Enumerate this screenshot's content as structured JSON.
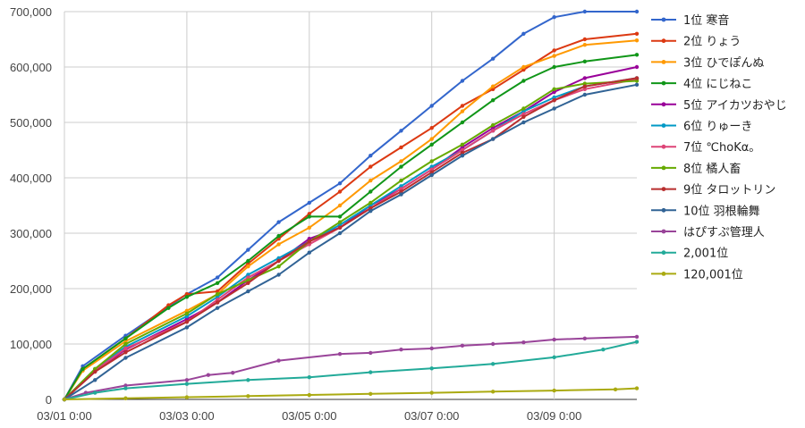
{
  "chart_data": {
    "type": "line",
    "title": "",
    "xlabel": "",
    "ylabel": "",
    "x_ticks": [
      "03/01 0:00",
      "03/03 0:00",
      "03/05 0:00",
      "03/07 0:00",
      "03/09 0:00"
    ],
    "x_unit": "days since 03/01 0:00",
    "x_range": [
      0,
      9.35
    ],
    "ylim": [
      0,
      700000
    ],
    "y_ticks": [
      0,
      100000,
      200000,
      300000,
      400000,
      500000,
      600000,
      700000
    ],
    "y_tick_labels": [
      "0",
      "100,000",
      "200,000",
      "300,000",
      "400,000",
      "500,000",
      "600,000",
      "700,000"
    ],
    "grid": true,
    "legend_position": "right",
    "series": [
      {
        "name": "1位 寒音",
        "color": "#3366cc",
        "points": [
          [
            0,
            0
          ],
          [
            0.3,
            60000
          ],
          [
            1,
            115000
          ],
          [
            2,
            190000
          ],
          [
            2.5,
            220000
          ],
          [
            3,
            270000
          ],
          [
            3.5,
            320000
          ],
          [
            4,
            355000
          ],
          [
            4.5,
            390000
          ],
          [
            5,
            440000
          ],
          [
            5.5,
            485000
          ],
          [
            6,
            530000
          ],
          [
            6.5,
            575000
          ],
          [
            7,
            615000
          ],
          [
            7.5,
            660000
          ],
          [
            8,
            690000
          ],
          [
            8.5,
            700000
          ],
          [
            9.35,
            700000
          ]
        ]
      },
      {
        "name": "2位 りょう",
        "color": "#dc3912",
        "points": [
          [
            0,
            0
          ],
          [
            0.3,
            55000
          ],
          [
            1,
            110000
          ],
          [
            1.7,
            170000
          ],
          [
            2,
            190000
          ],
          [
            2.5,
            195000
          ],
          [
            3,
            245000
          ],
          [
            3.5,
            290000
          ],
          [
            4,
            335000
          ],
          [
            4.5,
            375000
          ],
          [
            5,
            420000
          ],
          [
            5.5,
            455000
          ],
          [
            6,
            490000
          ],
          [
            6.5,
            530000
          ],
          [
            7,
            560000
          ],
          [
            7.5,
            595000
          ],
          [
            8,
            630000
          ],
          [
            8.5,
            650000
          ],
          [
            9.35,
            660000
          ]
        ]
      },
      {
        "name": "3位 ひでぽんぬ",
        "color": "#ff9900",
        "points": [
          [
            0,
            0
          ],
          [
            0.3,
            52000
          ],
          [
            1,
            105000
          ],
          [
            2,
            160000
          ],
          [
            2.5,
            190000
          ],
          [
            3,
            240000
          ],
          [
            3.5,
            280000
          ],
          [
            4,
            310000
          ],
          [
            4.5,
            350000
          ],
          [
            5,
            395000
          ],
          [
            5.5,
            430000
          ],
          [
            6,
            470000
          ],
          [
            6.5,
            520000
          ],
          [
            7,
            565000
          ],
          [
            7.5,
            600000
          ],
          [
            8,
            620000
          ],
          [
            8.5,
            640000
          ],
          [
            9.35,
            648000
          ]
        ]
      },
      {
        "name": "4位 にじねこ",
        "color": "#109618",
        "points": [
          [
            0,
            0
          ],
          [
            0.3,
            55000
          ],
          [
            1,
            110000
          ],
          [
            1.7,
            165000
          ],
          [
            2,
            185000
          ],
          [
            2.5,
            210000
          ],
          [
            3,
            250000
          ],
          [
            3.5,
            295000
          ],
          [
            4,
            330000
          ],
          [
            4.5,
            330000
          ],
          [
            5,
            375000
          ],
          [
            5.5,
            420000
          ],
          [
            6,
            460000
          ],
          [
            6.5,
            500000
          ],
          [
            7,
            540000
          ],
          [
            7.5,
            575000
          ],
          [
            8,
            600000
          ],
          [
            8.5,
            610000
          ],
          [
            9.35,
            622000
          ]
        ]
      },
      {
        "name": "5位 アイカツおやじ",
        "color": "#990099",
        "points": [
          [
            0,
            0
          ],
          [
            0.5,
            50000
          ],
          [
            1,
            90000
          ],
          [
            2,
            145000
          ],
          [
            2.5,
            175000
          ],
          [
            3,
            215000
          ],
          [
            3.5,
            250000
          ],
          [
            4,
            290000
          ],
          [
            4.5,
            310000
          ],
          [
            5,
            350000
          ],
          [
            5.5,
            380000
          ],
          [
            6,
            415000
          ],
          [
            6.5,
            455000
          ],
          [
            7,
            490000
          ],
          [
            7.5,
            520000
          ],
          [
            8,
            555000
          ],
          [
            8.5,
            580000
          ],
          [
            9.35,
            600000
          ]
        ]
      },
      {
        "name": "6位 りゅーき",
        "color": "#0099c6",
        "points": [
          [
            0,
            0
          ],
          [
            0.5,
            55000
          ],
          [
            1,
            95000
          ],
          [
            2,
            150000
          ],
          [
            2.5,
            185000
          ],
          [
            3,
            225000
          ],
          [
            3.5,
            255000
          ],
          [
            4,
            285000
          ],
          [
            4.5,
            315000
          ],
          [
            5,
            350000
          ],
          [
            5.5,
            385000
          ],
          [
            6,
            420000
          ],
          [
            6.5,
            450000
          ],
          [
            7,
            485000
          ],
          [
            7.5,
            520000
          ],
          [
            8,
            545000
          ],
          [
            8.5,
            565000
          ],
          [
            9.35,
            580000
          ]
        ]
      },
      {
        "name": "7位 ℃hoKα。",
        "color": "#dd4477",
        "points": [
          [
            0,
            0
          ],
          [
            0.5,
            52000
          ],
          [
            1,
            92000
          ],
          [
            2,
            140000
          ],
          [
            2.5,
            180000
          ],
          [
            3,
            220000
          ],
          [
            3.5,
            250000
          ],
          [
            4,
            280000
          ],
          [
            4.5,
            310000
          ],
          [
            5,
            345000
          ],
          [
            5.5,
            380000
          ],
          [
            6,
            415000
          ],
          [
            6.5,
            450000
          ],
          [
            7,
            485000
          ],
          [
            7.5,
            515000
          ],
          [
            8,
            540000
          ],
          [
            8.5,
            560000
          ],
          [
            9.35,
            578000
          ]
        ]
      },
      {
        "name": "8位 橘人畜",
        "color": "#66aa00",
        "points": [
          [
            0,
            0
          ],
          [
            0.5,
            55000
          ],
          [
            1,
            100000
          ],
          [
            2,
            155000
          ],
          [
            2.5,
            190000
          ],
          [
            3,
            215000
          ],
          [
            3.5,
            240000
          ],
          [
            4,
            285000
          ],
          [
            4.5,
            320000
          ],
          [
            5,
            355000
          ],
          [
            5.5,
            395000
          ],
          [
            6,
            430000
          ],
          [
            6.5,
            460000
          ],
          [
            7,
            495000
          ],
          [
            7.5,
            525000
          ],
          [
            8,
            560000
          ],
          [
            8.5,
            570000
          ],
          [
            9.35,
            575000
          ]
        ]
      },
      {
        "name": "9位 タロットリン",
        "color": "#b82e2e",
        "points": [
          [
            0,
            0
          ],
          [
            0.5,
            50000
          ],
          [
            1,
            85000
          ],
          [
            2,
            140000
          ],
          [
            2.5,
            175000
          ],
          [
            3,
            210000
          ],
          [
            3.5,
            250000
          ],
          [
            4,
            285000
          ],
          [
            4.5,
            310000
          ],
          [
            5,
            345000
          ],
          [
            5.5,
            375000
          ],
          [
            6,
            410000
          ],
          [
            6.5,
            445000
          ],
          [
            7,
            470000
          ],
          [
            7.5,
            510000
          ],
          [
            8,
            540000
          ],
          [
            8.5,
            565000
          ],
          [
            9.35,
            580000
          ]
        ]
      },
      {
        "name": "10位 羽根輪舞",
        "color": "#316395",
        "points": [
          [
            0,
            0
          ],
          [
            0.5,
            35000
          ],
          [
            1,
            75000
          ],
          [
            2,
            130000
          ],
          [
            2.5,
            165000
          ],
          [
            3,
            195000
          ],
          [
            3.5,
            225000
          ],
          [
            4,
            265000
          ],
          [
            4.5,
            300000
          ],
          [
            5,
            340000
          ],
          [
            5.5,
            370000
          ],
          [
            6,
            405000
          ],
          [
            6.5,
            440000
          ],
          [
            7,
            470000
          ],
          [
            7.5,
            500000
          ],
          [
            8,
            525000
          ],
          [
            8.5,
            550000
          ],
          [
            9.35,
            568000
          ]
        ]
      },
      {
        "name": "はぴすぷ管理人",
        "color": "#994499",
        "points": [
          [
            0,
            0
          ],
          [
            0.35,
            12000
          ],
          [
            1,
            25000
          ],
          [
            2,
            35000
          ],
          [
            2.35,
            44000
          ],
          [
            2.75,
            48000
          ],
          [
            3.5,
            70000
          ],
          [
            4.5,
            82000
          ],
          [
            5,
            84000
          ],
          [
            5.5,
            90000
          ],
          [
            6,
            92000
          ],
          [
            6.5,
            97000
          ],
          [
            7,
            100000
          ],
          [
            7.5,
            103000
          ],
          [
            8,
            108000
          ],
          [
            8.5,
            110000
          ],
          [
            9.35,
            113000
          ]
        ]
      },
      {
        "name": "2,001位",
        "color": "#22aa99",
        "points": [
          [
            0,
            0
          ],
          [
            0.5,
            12000
          ],
          [
            1,
            20000
          ],
          [
            2,
            28000
          ],
          [
            3,
            35000
          ],
          [
            4,
            40000
          ],
          [
            5,
            49000
          ],
          [
            6,
            56000
          ],
          [
            7,
            64000
          ],
          [
            8,
            76000
          ],
          [
            8.8,
            90000
          ],
          [
            9.35,
            104000
          ]
        ]
      },
      {
        "name": "120,001位",
        "color": "#aaaa11",
        "points": [
          [
            0,
            0
          ],
          [
            1,
            2000
          ],
          [
            2,
            4000
          ],
          [
            3,
            6000
          ],
          [
            4,
            8000
          ],
          [
            5,
            10000
          ],
          [
            6,
            12000
          ],
          [
            7,
            14000
          ],
          [
            8,
            16000
          ],
          [
            9,
            18000
          ],
          [
            9.35,
            20000
          ]
        ]
      }
    ]
  }
}
